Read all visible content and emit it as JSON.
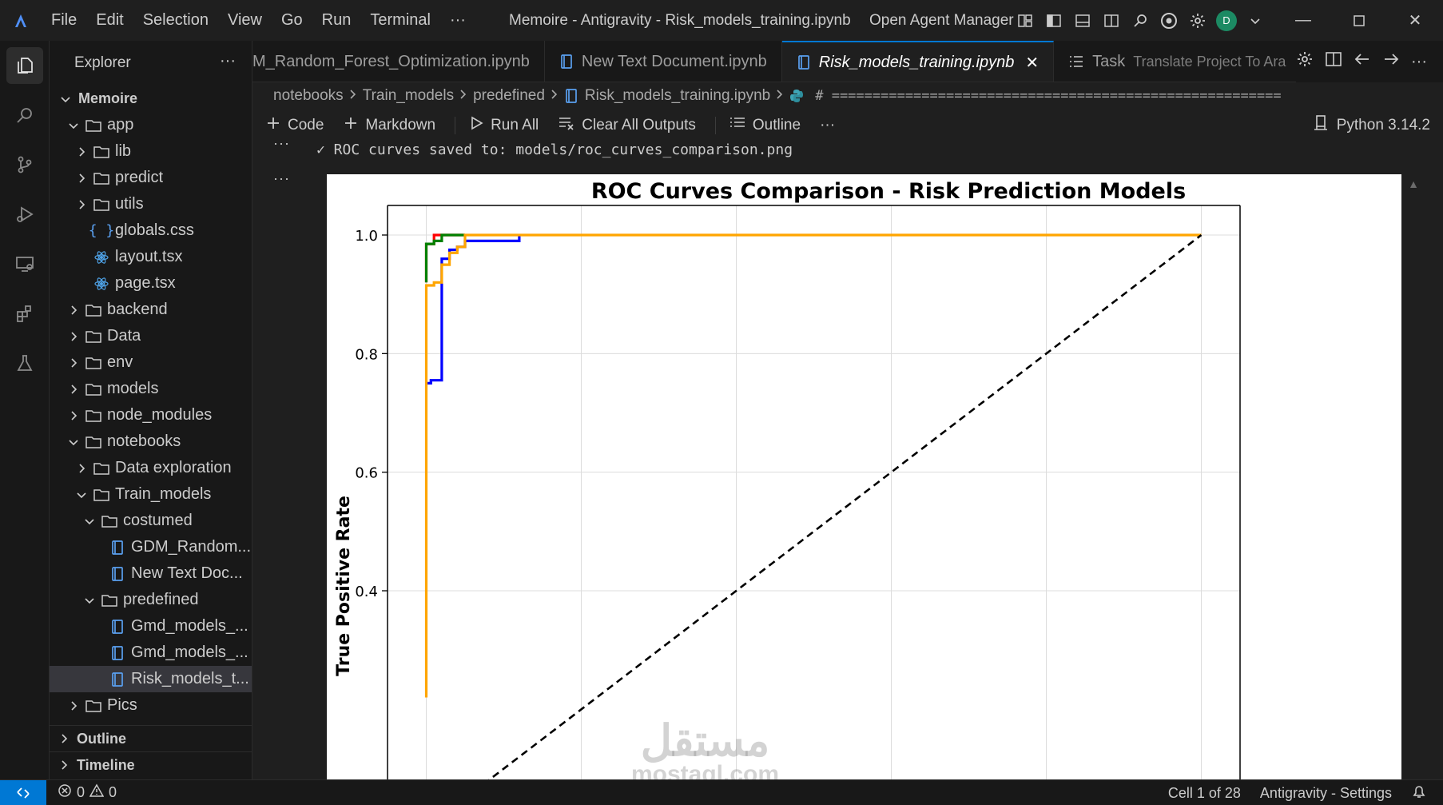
{
  "menu": [
    "File",
    "Edit",
    "Selection",
    "View",
    "Go",
    "Run",
    "Terminal",
    "···"
  ],
  "window_title": "Memoire - Antigravity - Risk_models_training.ipynb",
  "agent_manager": "Open Agent Manager",
  "avatar_letter": "D",
  "explorer": {
    "title": "Explorer",
    "more": "···",
    "root": "Memoire",
    "tree": [
      {
        "label": "app",
        "depth": 1,
        "type": "folder",
        "open": true
      },
      {
        "label": "lib",
        "depth": 2,
        "type": "folder",
        "open": false
      },
      {
        "label": "predict",
        "depth": 2,
        "type": "folder",
        "open": false
      },
      {
        "label": "utils",
        "depth": 2,
        "type": "folder",
        "open": false
      },
      {
        "label": "globals.css",
        "depth": 2,
        "type": "css"
      },
      {
        "label": "layout.tsx",
        "depth": 2,
        "type": "react"
      },
      {
        "label": "page.tsx",
        "depth": 2,
        "type": "react"
      },
      {
        "label": "backend",
        "depth": 1,
        "type": "folder",
        "open": false
      },
      {
        "label": "Data",
        "depth": 1,
        "type": "folder",
        "open": false
      },
      {
        "label": "env",
        "depth": 1,
        "type": "folder",
        "open": false
      },
      {
        "label": "models",
        "depth": 1,
        "type": "folder",
        "open": false
      },
      {
        "label": "node_modules",
        "depth": 1,
        "type": "folder",
        "open": false
      },
      {
        "label": "notebooks",
        "depth": 1,
        "type": "folder",
        "open": true
      },
      {
        "label": "Data exploration",
        "depth": 2,
        "type": "folder",
        "open": false
      },
      {
        "label": "Train_models",
        "depth": 2,
        "type": "folder",
        "open": true
      },
      {
        "label": "costumed",
        "depth": 3,
        "type": "folder",
        "open": true
      },
      {
        "label": "GDM_Random...",
        "depth": 4,
        "type": "notebook"
      },
      {
        "label": "New Text Doc...",
        "depth": 4,
        "type": "notebook"
      },
      {
        "label": "predefined",
        "depth": 3,
        "type": "folder",
        "open": true
      },
      {
        "label": "Gmd_models_...",
        "depth": 4,
        "type": "notebook"
      },
      {
        "label": "Gmd_models_...",
        "depth": 4,
        "type": "notebook"
      },
      {
        "label": "Risk_models_t...",
        "depth": 4,
        "type": "notebook",
        "selected": true
      },
      {
        "label": "Pics",
        "depth": 1,
        "type": "folder",
        "open": false
      }
    ],
    "outline": "Outline",
    "timeline": "Timeline"
  },
  "tabs": [
    {
      "label": "M_Random_Forest_Optimization.ipynb",
      "icon": "none"
    },
    {
      "label": "New Text Document.ipynb",
      "icon": "notebook"
    },
    {
      "label": "Risk_models_training.ipynb",
      "icon": "notebook",
      "active": true
    },
    {
      "label": "Task",
      "sub": "Translate Project To Ara",
      "icon": "task"
    }
  ],
  "tab_close": "✕",
  "breadcrumb": {
    "parts": [
      "notebooks",
      "Train_models",
      "predefined",
      "Risk_models_training.ipynb"
    ],
    "code": "# ======================================================="
  },
  "toolbar": {
    "code": "Code",
    "markdown": "Markdown",
    "run_all": "Run All",
    "clear": "Clear All Outputs",
    "outline": "Outline",
    "more": "···",
    "kernel": "Python 3.14.2"
  },
  "output": {
    "text": "✓ ROC curves saved to: models/roc_curves_comparison.png",
    "dots": "···"
  },
  "chart_data": {
    "type": "line",
    "title": "ROC Curves Comparison - Risk Prediction Models",
    "xlabel": "",
    "ylabel": "True Positive Rate",
    "xlim": [
      -0.05,
      1.05
    ],
    "ylim_visible": [
      0.22,
      1.05
    ],
    "yticks": [
      "0.4",
      "0.6",
      "0.8",
      "1.0"
    ],
    "grid": true,
    "series": [
      {
        "color": "#0000ff",
        "points": [
          [
            0,
            0.75
          ],
          [
            0.006,
            0.75
          ],
          [
            0.006,
            0.755
          ],
          [
            0.02,
            0.755
          ],
          [
            0.02,
            0.92
          ],
          [
            0.02,
            0.96
          ],
          [
            0.03,
            0.96
          ],
          [
            0.03,
            0.975
          ],
          [
            0.04,
            0.975
          ],
          [
            0.04,
            0.98
          ],
          [
            0.05,
            0.98
          ],
          [
            0.05,
            0.99
          ],
          [
            0.12,
            0.99
          ],
          [
            0.12,
            1.0
          ]
        ]
      },
      {
        "color": "#ff0000",
        "points": [
          [
            0,
            0.92
          ],
          [
            0,
            0.985
          ],
          [
            0.01,
            0.985
          ],
          [
            0.01,
            1.0
          ],
          [
            0.05,
            1.0
          ]
        ]
      },
      {
        "color": "#008000",
        "points": [
          [
            0,
            0.92
          ],
          [
            0,
            0.985
          ],
          [
            0.01,
            0.985
          ],
          [
            0.01,
            0.99
          ],
          [
            0.02,
            0.99
          ],
          [
            0.02,
            1.0
          ],
          [
            0.05,
            1.0
          ]
        ]
      },
      {
        "color": "#ffa500",
        "points": [
          [
            0,
            0.22
          ],
          [
            0,
            0.915
          ],
          [
            0.01,
            0.915
          ],
          [
            0.01,
            0.92
          ],
          [
            0.02,
            0.92
          ],
          [
            0.02,
            0.95
          ],
          [
            0.03,
            0.95
          ],
          [
            0.03,
            0.97
          ],
          [
            0.04,
            0.97
          ],
          [
            0.04,
            0.98
          ],
          [
            0.05,
            0.98
          ],
          [
            0.05,
            1.0
          ],
          [
            1.0,
            1.0
          ]
        ]
      },
      {
        "color": "#000000",
        "dashed": true,
        "points": [
          [
            0,
            0
          ],
          [
            1,
            1
          ]
        ]
      }
    ]
  },
  "status": {
    "errors": "0",
    "warnings": "0",
    "cell": "Cell 1 of 28",
    "settings": "Antigravity - Settings"
  },
  "watermark": {
    "arabic": "مستقل",
    "latin": "mostaql.com"
  }
}
